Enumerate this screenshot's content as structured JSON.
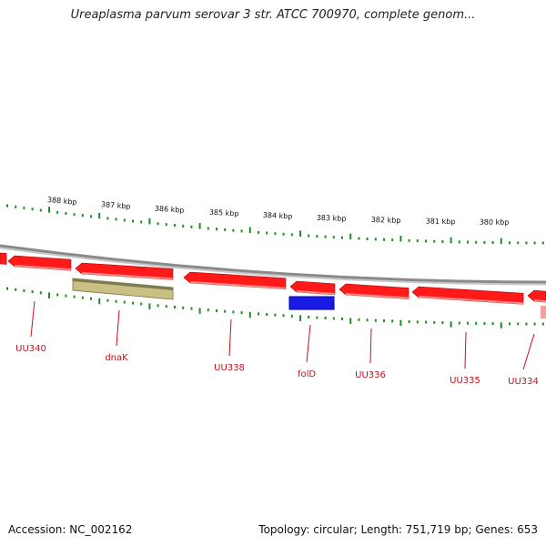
{
  "title": "Ureaplasma parvum serovar 3 str. ATCC 700970, complete genom...",
  "footer": {
    "accession": "Accession: NC_002162",
    "summary": "Topology: circular; Length: 751,719 bp; Genes: 653"
  },
  "colors": {
    "cds_forward_reverse": "#ff1a1a",
    "gene_label": "#c8101a",
    "tick_mark": "#1e8f1e",
    "backbone": "#8a8a8a",
    "dnaK_feature": "#c9c183",
    "folD_feature": "#1a1ae6",
    "partial_feature": "#f4a0a0"
  },
  "kbp_ticks": [
    "388 kbp",
    "387 kbp",
    "386 kbp",
    "385 kbp",
    "384 kbp",
    "383 kbp",
    "382 kbp",
    "381 kbp",
    "380 kbp"
  ],
  "gene_labels": [
    "UU340",
    "dnaK",
    "UU338",
    "folD",
    "UU336",
    "UU335",
    "UU334"
  ]
}
